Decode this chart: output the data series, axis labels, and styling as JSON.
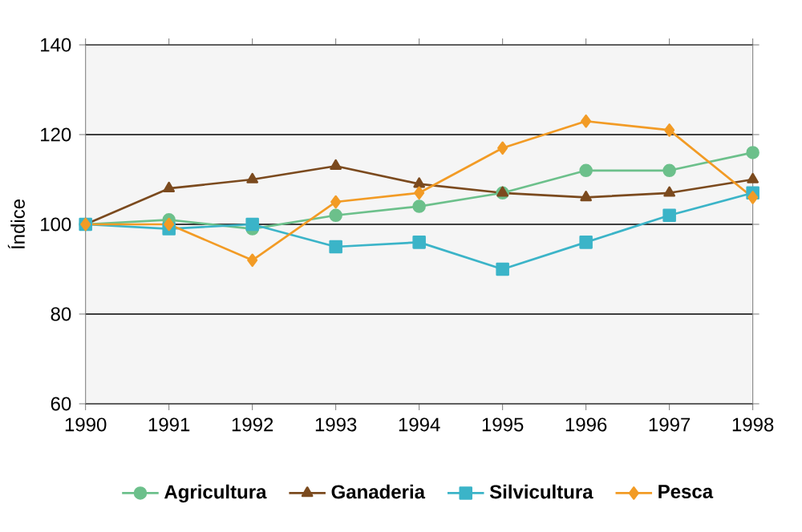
{
  "chart_data": {
    "type": "line",
    "ylabel": "Índice",
    "x": [
      1990,
      1991,
      1992,
      1993,
      1994,
      1995,
      1996,
      1997,
      1998
    ],
    "series": [
      {
        "name": "Agricultura",
        "color": "#6cc08b",
        "marker": "circle",
        "values": [
          100,
          101,
          99,
          102,
          104,
          107,
          112,
          112,
          116
        ]
      },
      {
        "name": "Ganaderia",
        "color": "#7b4a1e",
        "marker": "triangle",
        "values": [
          100,
          108,
          110,
          113,
          109,
          107,
          106,
          107,
          110
        ]
      },
      {
        "name": "Silvicultura",
        "color": "#3bb4c8",
        "marker": "square",
        "values": [
          100,
          99,
          100,
          95,
          96,
          90,
          96,
          102,
          107
        ]
      },
      {
        "name": "Pesca",
        "color": "#f29b25",
        "marker": "diamond",
        "values": [
          100,
          100,
          92,
          105,
          107,
          117,
          123,
          121,
          106
        ]
      }
    ],
    "xlim": [
      1990,
      1998
    ],
    "xticks": [
      1990,
      1991,
      1992,
      1993,
      1994,
      1995,
      1996,
      1997,
      1998
    ],
    "ylim": [
      60,
      140
    ],
    "yticks": [
      60,
      80,
      100,
      120,
      140
    ],
    "grid": "y",
    "legend": "bottom",
    "line_style": "solid"
  }
}
